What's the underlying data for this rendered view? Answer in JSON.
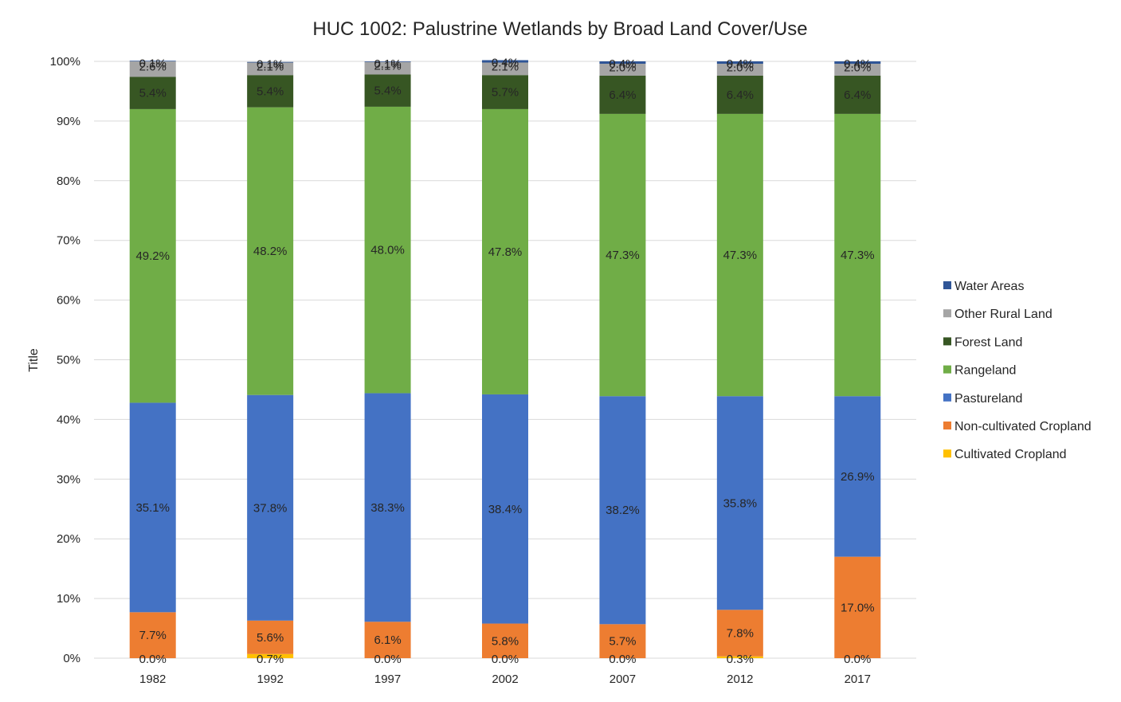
{
  "chart_data": {
    "type": "bar",
    "stacked": "percent",
    "title": "HUC 1002: Palustrine Wetlands by Broad Land Cover/Use",
    "xlabel": "",
    "ylabel": "Title",
    "ylim": [
      0,
      100
    ],
    "yticks": [
      "0%",
      "10%",
      "20%",
      "30%",
      "40%",
      "50%",
      "60%",
      "70%",
      "80%",
      "90%",
      "100%"
    ],
    "grid": true,
    "legend_position": "right",
    "categories": [
      "1982",
      "1992",
      "1997",
      "2002",
      "2007",
      "2012",
      "2017"
    ],
    "series": [
      {
        "name": "Cultivated Cropland",
        "color": "#FFC000",
        "values": [
          0.0,
          0.7,
          0.0,
          0.0,
          0.0,
          0.3,
          0.0
        ],
        "labels": [
          "0.0%",
          "0.7%",
          "0.0%",
          "0.0%",
          "0.0%",
          "0.3%",
          "0.0%"
        ]
      },
      {
        "name": "Non-cultivated Cropland",
        "color": "#ED7D31",
        "values": [
          7.7,
          5.6,
          6.1,
          5.8,
          5.7,
          7.8,
          17.0
        ],
        "labels": [
          "7.7%",
          "5.6%",
          "6.1%",
          "5.8%",
          "5.7%",
          "7.8%",
          "17.0%"
        ]
      },
      {
        "name": "Pastureland",
        "color": "#4472C4",
        "values": [
          35.1,
          37.8,
          38.3,
          38.4,
          38.2,
          35.8,
          26.9
        ],
        "labels": [
          "35.1%",
          "37.8%",
          "38.3%",
          "38.4%",
          "38.2%",
          "35.8%",
          "26.9%"
        ]
      },
      {
        "name": "Rangeland",
        "color": "#70AD47",
        "values": [
          49.2,
          48.2,
          48.0,
          47.8,
          47.3,
          47.3,
          47.3
        ],
        "labels": [
          "49.2%",
          "48.2%",
          "48.0%",
          "47.8%",
          "47.3%",
          "47.3%",
          "47.3%"
        ]
      },
      {
        "name": "Forest Land",
        "color": "#375623",
        "values": [
          5.4,
          5.4,
          5.4,
          5.7,
          6.4,
          6.4,
          6.4
        ],
        "labels": [
          "5.4%",
          "5.4%",
          "5.4%",
          "5.7%",
          "6.4%",
          "6.4%",
          "6.4%"
        ]
      },
      {
        "name": "Other Rural Land",
        "color": "#A5A5A5",
        "values": [
          2.6,
          2.1,
          2.1,
          2.1,
          2.0,
          2.0,
          2.0
        ],
        "labels": [
          "2.6%",
          "2.1%",
          "2.1%",
          "2.1%",
          "2.0%",
          "2.0%",
          "2.0%"
        ]
      },
      {
        "name": "Water Areas",
        "color": "#2F5597",
        "values": [
          0.1,
          0.1,
          0.1,
          0.4,
          0.4,
          0.4,
          0.4
        ],
        "labels": [
          "0.1%",
          "0.1%",
          "0.1%",
          "0.4%",
          "0.4%",
          "0.4%",
          "0.4%"
        ]
      }
    ]
  }
}
